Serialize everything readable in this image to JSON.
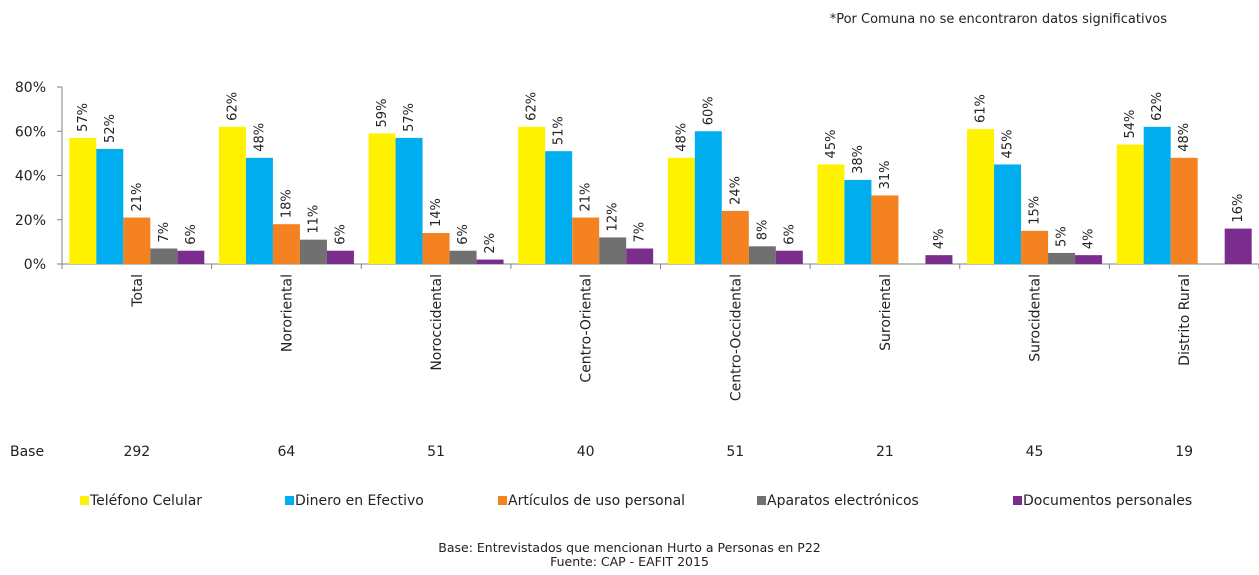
{
  "note": "*Por Comuna no  se encontraron datos significativos",
  "footer": {
    "line1": "Base: Entrevistados que mencionan Hurto a Personas en P22",
    "line2": "Fuente: CAP - EAFIT 2015"
  },
  "chart_data": {
    "type": "bar",
    "ylim": [
      0,
      80
    ],
    "yticks": [
      0,
      20,
      40,
      60,
      80
    ],
    "ytick_labels": [
      "0%",
      "20%",
      "40%",
      "60%",
      "80%"
    ],
    "categories": [
      "Total",
      "Nororiental",
      "Noroccidental",
      "Centro-Oriental",
      "Centro-Occidental",
      "Suroriental",
      "Surocidental",
      "Distrito Rural"
    ],
    "base_label": "Base",
    "base_values": [
      "292",
      "64",
      "51",
      "40",
      "51",
      "21",
      "45",
      "19"
    ],
    "legend_position": "bottom",
    "grid": false,
    "series": [
      {
        "name": "Teléfono Celular",
        "color": "#FFF200",
        "values": [
          57,
          62,
          59,
          62,
          48,
          45,
          61,
          54
        ]
      },
      {
        "name": "Dinero en Efectivo",
        "color": "#00AEEF",
        "values": [
          52,
          48,
          57,
          51,
          60,
          38,
          45,
          62
        ]
      },
      {
        "name": "Artículos de uso personal",
        "color": "#F58220",
        "values": [
          21,
          18,
          14,
          21,
          24,
          31,
          15,
          48
        ]
      },
      {
        "name": "Aparatos electrónicos",
        "color": "#707070",
        "values": [
          7,
          11,
          6,
          12,
          8,
          null,
          5,
          null
        ]
      },
      {
        "name": "Documentos personales",
        "color": "#7B2D8E",
        "values": [
          6,
          6,
          2,
          7,
          6,
          4,
          4,
          16
        ]
      }
    ],
    "data_labels": [
      [
        "57%",
        "62%",
        "59%",
        "62%",
        "48%",
        "45%",
        "61%",
        "54%"
      ],
      [
        "52%",
        "48%",
        "57%",
        "51%",
        "60%",
        "38%",
        "45%",
        "62%"
      ],
      [
        "21%",
        "18%",
        "14%",
        "21%",
        "24%",
        "31%",
        "15%",
        "48%"
      ],
      [
        "7%",
        "11%",
        "6%",
        "12%",
        "8%",
        null,
        "5%",
        null
      ],
      [
        "6%",
        "6%",
        "2%",
        "7%",
        "6%",
        "4%",
        "4%",
        "16%"
      ]
    ]
  }
}
